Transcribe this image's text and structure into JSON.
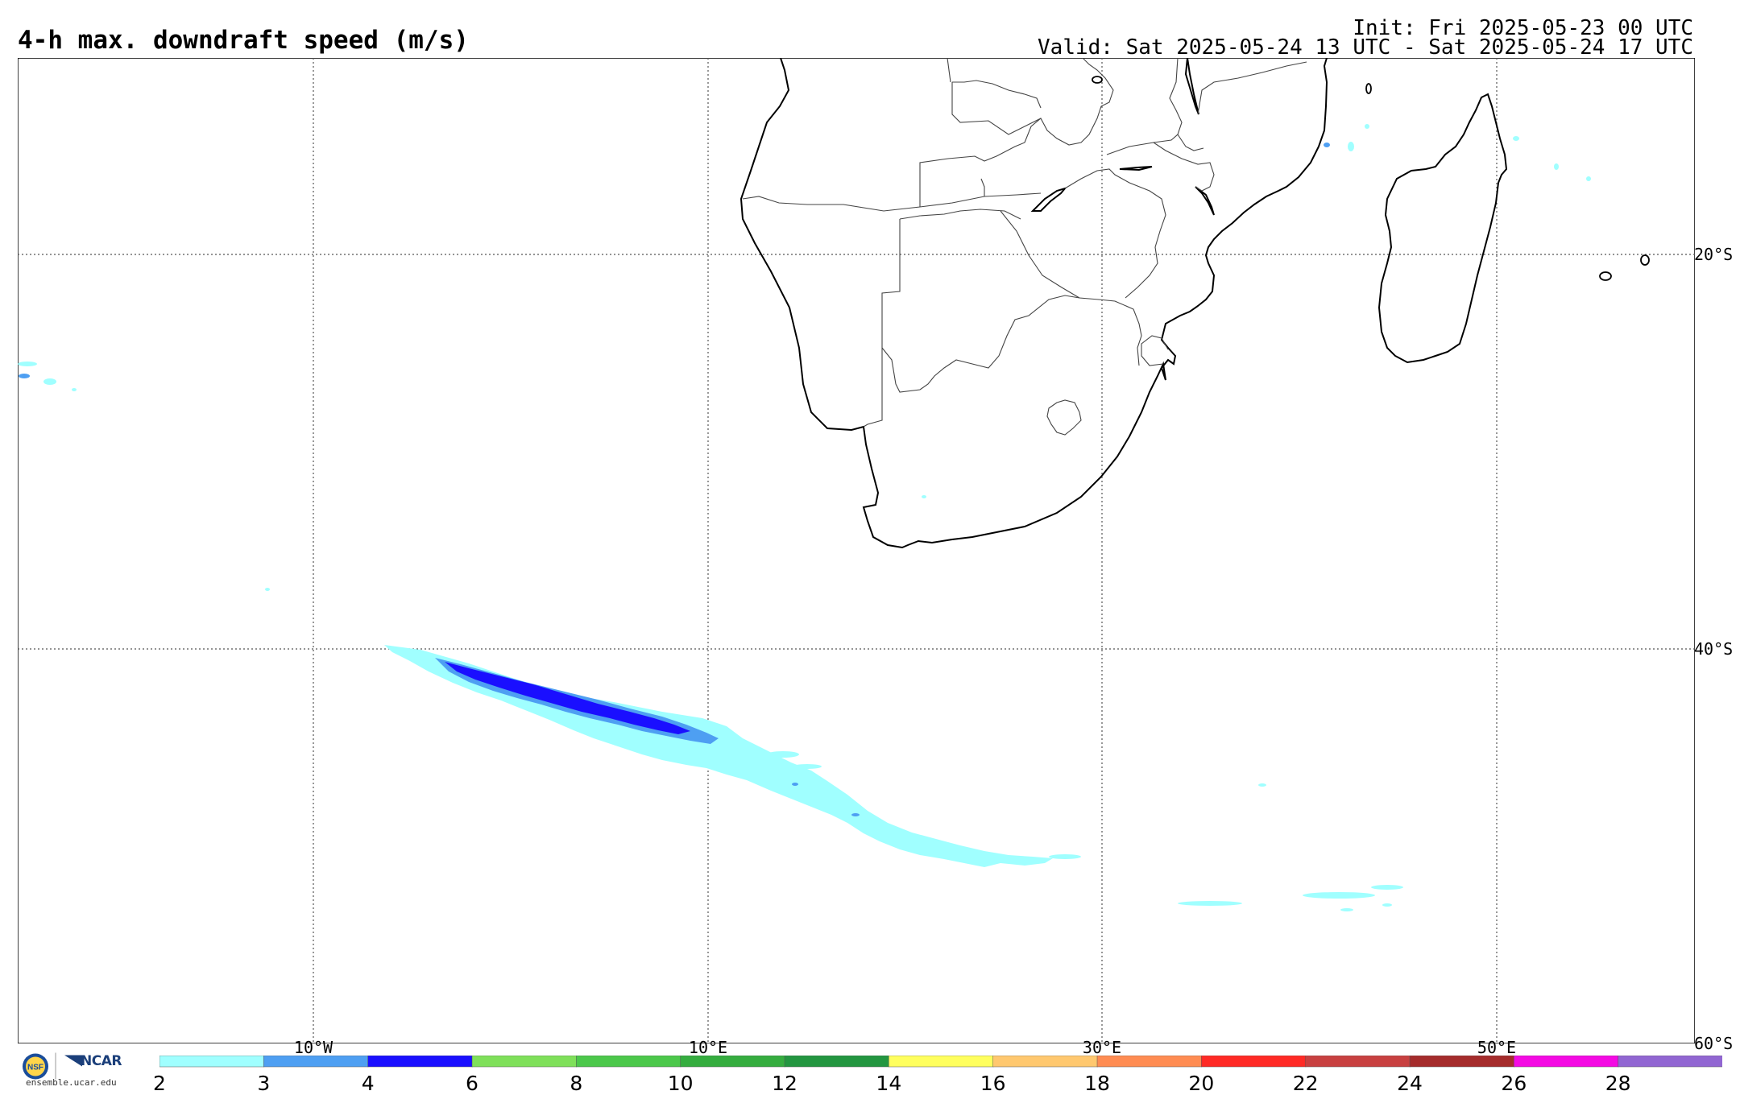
{
  "header": {
    "title": "4-h max. downdraft speed (m/s)",
    "init": "Init: Fri 2025-05-23 00 UTC",
    "valid": "Valid: Sat 2025-05-24 13 UTC - Sat 2025-05-24 17 UTC"
  },
  "map": {
    "lon_labels": [
      "10°W",
      "10°E",
      "30°E",
      "50°E"
    ],
    "lat_labels": [
      "20°S",
      "40°S",
      "60°S"
    ],
    "gridlines": "dotted",
    "lon_range": [
      -25,
      60
    ],
    "lat_range": [
      -10,
      -60
    ]
  },
  "colorbar": {
    "ticks": [
      "2",
      "3",
      "4",
      "6",
      "8",
      "10",
      "12",
      "14",
      "16",
      "18",
      "20",
      "22",
      "24",
      "26",
      "28"
    ],
    "colors": [
      "#a0ffff",
      "#4e9ff2",
      "#1a0fff",
      "#7fe05a",
      "#4cc84b",
      "#35ad3f",
      "#239640",
      "#ffff5e",
      "#ffc86f",
      "#ff8c52",
      "#ff2a25",
      "#c84040",
      "#a52c2c",
      "#f40ae3",
      "#9166d2"
    ]
  },
  "footer": {
    "logo_nsf": "NSF",
    "logo_ncar": "NCAR",
    "website": "ensemble.ucar.edu"
  }
}
